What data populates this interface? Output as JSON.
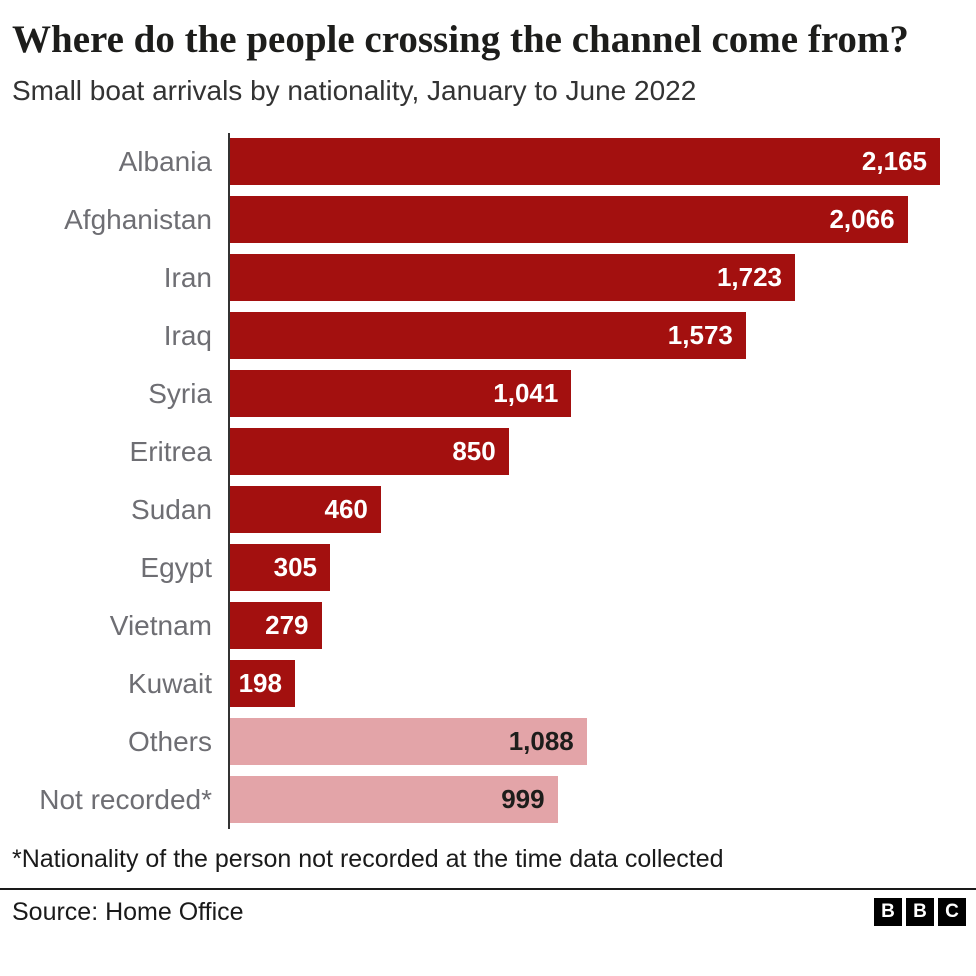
{
  "header": {
    "title": "Where do the people crossing the channel come from?",
    "subtitle": "Small boat arrivals by nationality, January to June 2022"
  },
  "chart_data": {
    "type": "bar",
    "orientation": "horizontal",
    "title": "Where do the people crossing the channel come from?",
    "subtitle": "Small boat arrivals by nationality, January to June 2022",
    "categories": [
      "Albania",
      "Afghanistan",
      "Iran",
      "Iraq",
      "Syria",
      "Eritrea",
      "Sudan",
      "Egypt",
      "Vietnam",
      "Kuwait",
      "Others",
      "Not recorded*"
    ],
    "values": [
      2165,
      2066,
      1723,
      1573,
      1041,
      850,
      460,
      305,
      279,
      198,
      1088,
      999
    ],
    "value_labels": [
      "2,165",
      "2,066",
      "1,723",
      "1,573",
      "1,041",
      "850",
      "460",
      "305",
      "279",
      "198",
      "1,088",
      "999"
    ],
    "bar_styles": [
      "primary",
      "primary",
      "primary",
      "primary",
      "primary",
      "primary",
      "primary",
      "primary",
      "primary",
      "primary",
      "secondary",
      "secondary"
    ],
    "colors": {
      "primary": "#a3100f",
      "secondary": "#e3a4a8"
    },
    "xlim": [
      0,
      2165
    ],
    "grid": false,
    "legend": "none",
    "value_label_position": "inside-end"
  },
  "footnote": "*Nationality of the person not recorded at the time data collected",
  "source": "Source: Home Office",
  "logo": {
    "letters": [
      "B",
      "B",
      "C"
    ]
  }
}
